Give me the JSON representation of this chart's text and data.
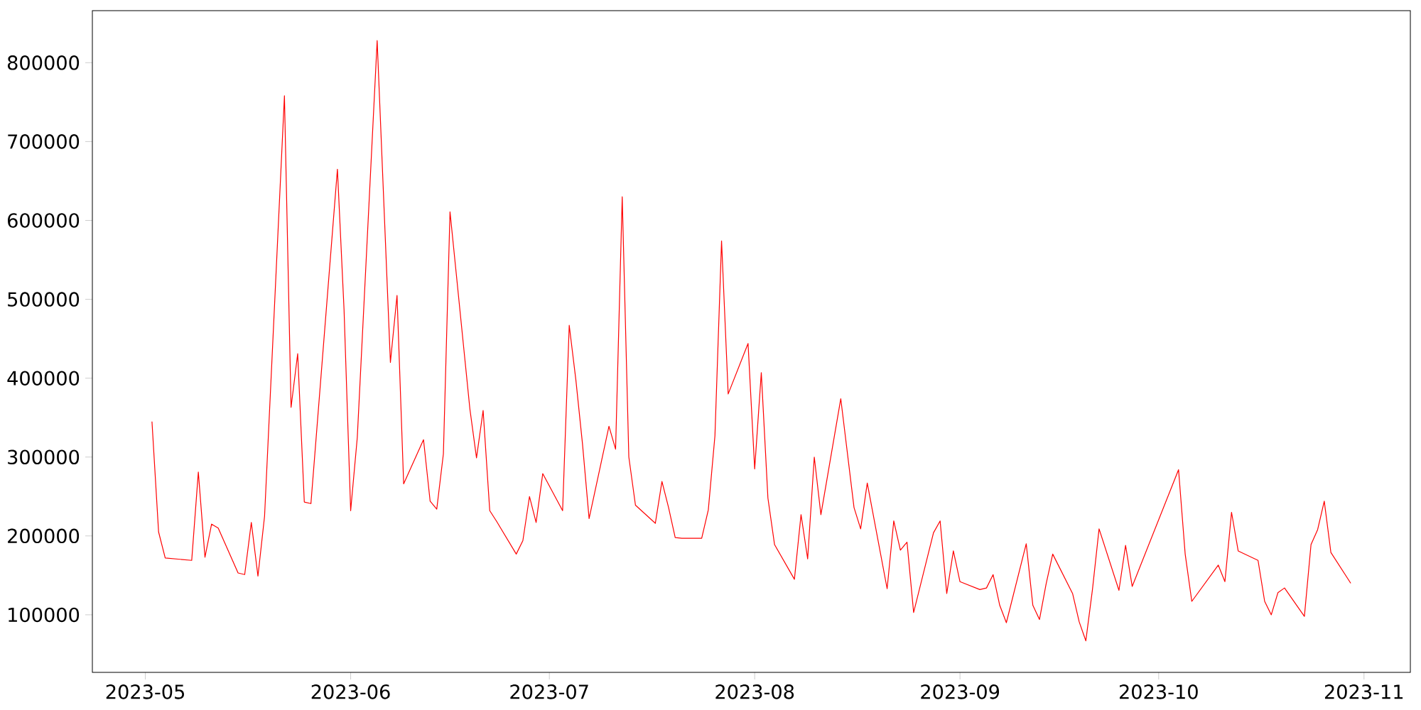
{
  "chart_data": {
    "type": "line",
    "x": [
      "2023-05-02",
      "2023-05-03",
      "2023-05-04",
      "2023-05-08",
      "2023-05-09",
      "2023-05-10",
      "2023-05-11",
      "2023-05-12",
      "2023-05-15",
      "2023-05-16",
      "2023-05-17",
      "2023-05-18",
      "2023-05-19",
      "2023-05-22",
      "2023-05-23",
      "2023-05-24",
      "2023-05-25",
      "2023-05-26",
      "2023-05-30",
      "2023-05-31",
      "2023-06-01",
      "2023-06-02",
      "2023-06-05",
      "2023-06-07",
      "2023-06-08",
      "2023-06-09",
      "2023-06-12",
      "2023-06-13",
      "2023-06-14",
      "2023-06-15",
      "2023-06-16",
      "2023-06-19",
      "2023-06-20",
      "2023-06-21",
      "2023-06-22",
      "2023-06-23",
      "2023-06-26",
      "2023-06-27",
      "2023-06-28",
      "2023-06-29",
      "2023-06-30",
      "2023-07-03",
      "2023-07-04",
      "2023-07-05",
      "2023-07-06",
      "2023-07-07",
      "2023-07-10",
      "2023-07-11",
      "2023-07-12",
      "2023-07-13",
      "2023-07-14",
      "2023-07-17",
      "2023-07-18",
      "2023-07-19",
      "2023-07-20",
      "2023-07-21",
      "2023-07-24",
      "2023-07-25",
      "2023-07-26",
      "2023-07-27",
      "2023-07-28",
      "2023-07-31",
      "2023-08-01",
      "2023-08-02",
      "2023-08-03",
      "2023-08-04",
      "2023-08-07",
      "2023-08-08",
      "2023-08-09",
      "2023-08-10",
      "2023-08-11",
      "2023-08-14",
      "2023-08-16",
      "2023-08-17",
      "2023-08-18",
      "2023-08-21",
      "2023-08-22",
      "2023-08-23",
      "2023-08-24",
      "2023-08-25",
      "2023-08-28",
      "2023-08-29",
      "2023-08-30",
      "2023-08-31",
      "2023-09-01",
      "2023-09-04",
      "2023-09-05",
      "2023-09-06",
      "2023-09-07",
      "2023-09-08",
      "2023-09-11",
      "2023-09-12",
      "2023-09-13",
      "2023-09-14",
      "2023-09-15",
      "2023-09-18",
      "2023-09-19",
      "2023-09-20",
      "2023-09-21",
      "2023-09-22",
      "2023-09-25",
      "2023-09-26",
      "2023-09-27",
      "2023-10-04",
      "2023-10-05",
      "2023-10-06",
      "2023-10-10",
      "2023-10-11",
      "2023-10-12",
      "2023-10-13",
      "2023-10-16",
      "2023-10-17",
      "2023-10-18",
      "2023-10-19",
      "2023-10-20",
      "2023-10-23",
      "2023-10-24",
      "2023-10-25",
      "2023-10-26",
      "2023-10-27",
      "2023-10-30"
    ],
    "series": [
      {
        "color": "#ff0000",
        "values": [
          345000,
          205000,
          172000,
          169000,
          281000,
          173000,
          215000,
          210000,
          153000,
          151000,
          217000,
          149000,
          225000,
          758000,
          363000,
          431000,
          243000,
          241000,
          665000,
          487000,
          232000,
          325000,
          828000,
          420000,
          505000,
          266000,
          322000,
          244000,
          234000,
          304000,
          611000,
          361000,
          299000,
          359000,
          232000,
          219000,
          177000,
          194000,
          250000,
          217000,
          279000,
          232000,
          467000,
          398000,
          317000,
          222000,
          339000,
          310000,
          630000,
          300000,
          239000,
          216000,
          269000,
          236000,
          198000,
          197000,
          197000,
          233000,
          327000,
          574000,
          380000,
          444000,
          285000,
          407000,
          248000,
          189000,
          145000,
          227000,
          171000,
          300000,
          227000,
          374000,
          236000,
          209000,
          267000,
          133000,
          219000,
          182000,
          192000,
          103000,
          204000,
          219000,
          127000,
          181000,
          142000,
          132000,
          134000,
          151000,
          112000,
          90000,
          190000,
          112000,
          94000,
          139000,
          177000,
          127000,
          91000,
          67000,
          132000,
          209000,
          131000,
          188000,
          136000,
          284000,
          177000,
          117000,
          163000,
          142000,
          230000,
          181000,
          169000,
          117000,
          100000,
          128000,
          134000,
          98000,
          189000,
          208000,
          244000,
          179000,
          140000
        ]
      }
    ],
    "xlim": [
      "2023-04-23",
      "2023-11-08"
    ],
    "ylim": [
      27000,
      866000
    ],
    "xticks": [
      "2023-05",
      "2023-06",
      "2023-07",
      "2023-08",
      "2023-09",
      "2023-10",
      "2023-11"
    ],
    "yticks": [
      100000,
      200000,
      300000,
      400000,
      500000,
      600000,
      700000,
      800000
    ],
    "grid": false,
    "marker": "none",
    "line_style": "solid"
  }
}
